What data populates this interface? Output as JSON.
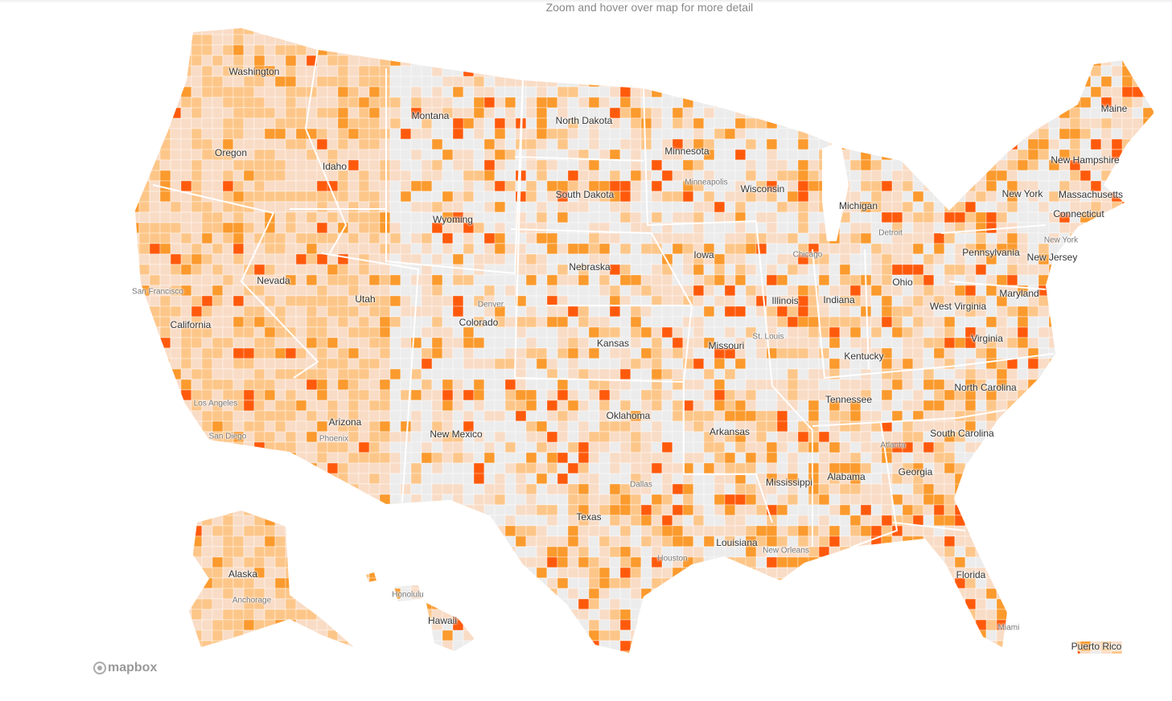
{
  "hint": "Zoom and hover over map for more detail",
  "attribution": "mapbox",
  "colors": {
    "none": "#ececec",
    "low": "#f9dcc6",
    "medium": "#fdc689",
    "high": "#fb9a2d",
    "highest": "#ff5a0c",
    "border": "#ffffff"
  },
  "states": [
    "Washington",
    "Montana",
    "North Dakota",
    "Minnesota",
    "Oregon",
    "Idaho",
    "South Dakota",
    "Wisconsin",
    "Wyoming",
    "Michigan",
    "Nebraska",
    "Iowa",
    "Nevada",
    "Utah",
    "Colorado",
    "Illinois",
    "Indiana",
    "Ohio",
    "California",
    "Kansas",
    "Missouri",
    "Kentucky",
    "West Virginia",
    "Virginia",
    "Pennsylvania",
    "New Jersey",
    "Maryland",
    "New York",
    "Massachusetts",
    "Connecticut",
    "New Hampshire",
    "Maine",
    "Tennessee",
    "North Carolina",
    "South Carolina",
    "Oklahoma",
    "Arkansas",
    "Arizona",
    "New Mexico",
    "Texas",
    "Mississippi",
    "Alabama",
    "Georgia",
    "Louisiana",
    "Florida",
    "Alaska",
    "Hawaii",
    "Puerto Rico"
  ],
  "cities": [
    "San Francisco",
    "Minneapolis",
    "Chicago",
    "Detroit",
    "New York",
    "Denver",
    "St. Louis",
    "Los Angeles",
    "San Diego",
    "Phoenix",
    "Dallas",
    "Atlanta",
    "Houston",
    "New Orleans",
    "Honolulu",
    "Anchorage",
    "Miami"
  ]
}
